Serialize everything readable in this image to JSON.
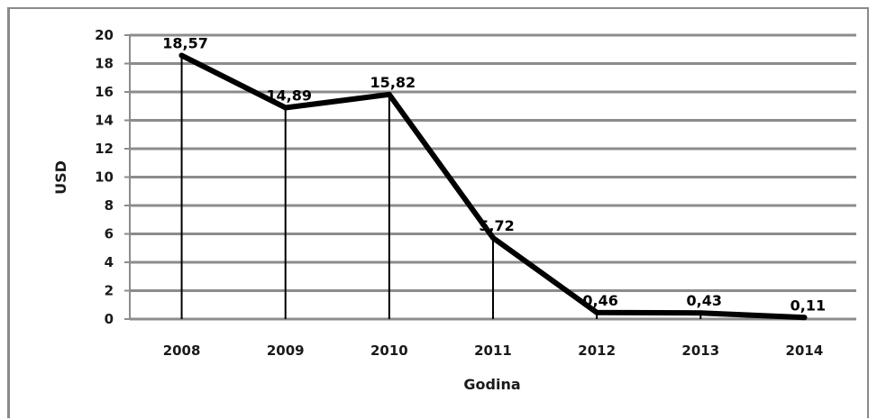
{
  "chart_data": {
    "type": "line",
    "title": "",
    "xlabel": "Godina",
    "ylabel": "USD",
    "categories": [
      "2008",
      "2009",
      "2010",
      "2011",
      "2012",
      "2013",
      "2014"
    ],
    "values": [
      18.57,
      14.89,
      15.82,
      5.72,
      0.46,
      0.43,
      0.11
    ],
    "data_labels": [
      "18,57",
      "14,89",
      "15,82",
      "5,72",
      "0,46",
      "0,43",
      "0,11"
    ],
    "ylim": [
      0,
      20
    ],
    "yticks": [
      "0",
      "2",
      "4",
      "6",
      "8",
      "10",
      "12",
      "14",
      "16",
      "18",
      "20"
    ],
    "grid": true,
    "drop_lines": true,
    "line_color": "#000000",
    "grid_color": "#8c8c8c"
  }
}
